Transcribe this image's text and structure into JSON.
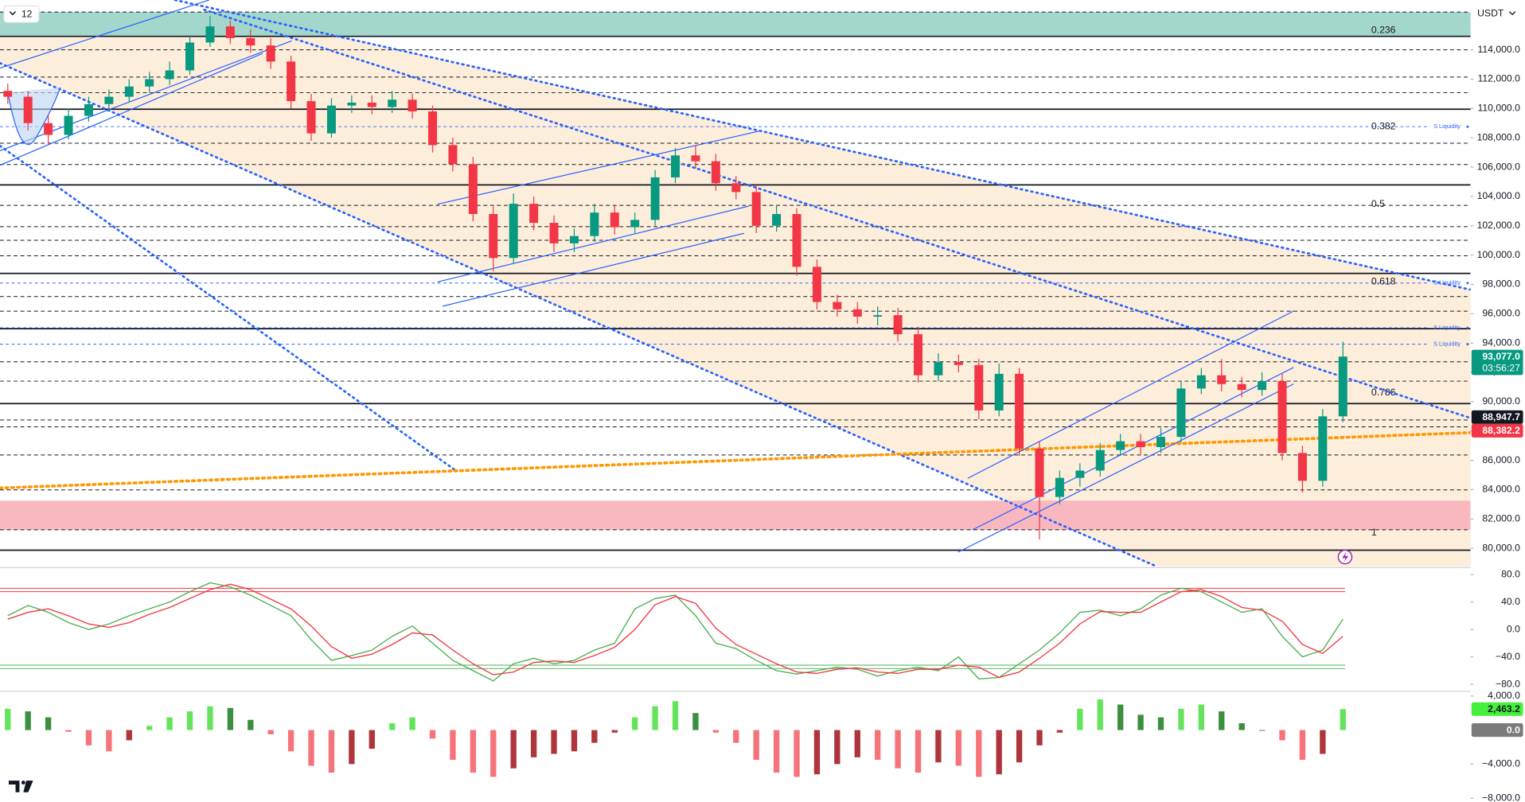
{
  "toolbar": {
    "interval": "12"
  },
  "currency": "USDT",
  "chart_data": [
    {
      "type": "candlestick",
      "up_color": "#089981",
      "down_color": "#f23645",
      "open": [
        111200,
        110800,
        109000,
        108200,
        109500,
        110300,
        110800,
        111500,
        112000,
        112600,
        114500,
        115600,
        114800,
        114300,
        113200,
        110500,
        108300,
        110200,
        110400,
        110100,
        110600,
        109800,
        107500,
        106200,
        102800,
        99800,
        103500,
        102200,
        100800,
        101300,
        102900,
        101900,
        102400,
        105300,
        106800,
        106400,
        104900,
        104300,
        102000,
        102800,
        99200,
        96800,
        96300,
        95800,
        95900,
        94600,
        91800,
        92700,
        92500,
        89400,
        91900,
        86800,
        83500,
        84800,
        85300,
        86700,
        87300,
        86900,
        87600,
        90900,
        91800,
        91200,
        90800,
        91400,
        86500,
        84600,
        89000
      ],
      "high": [
        111700,
        111200,
        109600,
        110000,
        110800,
        111300,
        112000,
        112500,
        113200,
        115000,
        116300,
        116000,
        115400,
        114800,
        113600,
        111000,
        110700,
        110900,
        110900,
        111200,
        111000,
        110200,
        108000,
        106700,
        103300,
        104200,
        104000,
        102700,
        101800,
        103500,
        103400,
        102900,
        105800,
        107300,
        107500,
        106900,
        105400,
        104800,
        103400,
        103200,
        99700,
        97300,
        96800,
        96500,
        96400,
        95100,
        93300,
        93200,
        92900,
        92600,
        92300,
        87300,
        85300,
        85800,
        87200,
        87800,
        87800,
        88200,
        91400,
        92300,
        92900,
        91700,
        92000,
        91900,
        87000,
        89500,
        94100
      ],
      "low": [
        110300,
        108500,
        107600,
        107900,
        109100,
        109900,
        110400,
        111100,
        111600,
        112300,
        114200,
        114400,
        113800,
        112700,
        110000,
        107800,
        108000,
        109700,
        109600,
        109700,
        109300,
        107000,
        105700,
        102300,
        98900,
        99400,
        101700,
        100200,
        100200,
        100900,
        101400,
        101500,
        102000,
        104900,
        105900,
        104400,
        103800,
        101500,
        101600,
        98600,
        96300,
        95800,
        95300,
        95200,
        94100,
        91300,
        91400,
        92000,
        88800,
        89000,
        86300,
        80600,
        83000,
        84200,
        84900,
        86300,
        86400,
        86500,
        87200,
        90500,
        90700,
        90300,
        90400,
        86000,
        83800,
        84200,
        88600
      ],
      "close": [
        110800,
        109000,
        108200,
        109500,
        110300,
        110800,
        111500,
        112000,
        112600,
        114500,
        115600,
        114800,
        114300,
        113200,
        110500,
        108300,
        110200,
        110400,
        110100,
        110600,
        109800,
        107500,
        106200,
        102800,
        99800,
        103500,
        102200,
        100800,
        101300,
        102900,
        101900,
        102400,
        105300,
        106800,
        106400,
        104900,
        104300,
        102000,
        102800,
        99200,
        96800,
        96300,
        95800,
        95900,
        94600,
        91800,
        92700,
        92500,
        89400,
        91900,
        86800,
        83500,
        84800,
        85300,
        86700,
        87300,
        86900,
        87600,
        90900,
        91800,
        91200,
        90800,
        91400,
        86500,
        84600,
        89000,
        93077
      ],
      "ylim": [
        78740,
        117400
      ],
      "yticks": [
        {
          "value": 80000,
          "label": "80,000.0"
        },
        {
          "value": 82000,
          "label": "82,000.0"
        },
        {
          "value": 84000,
          "label": "84,000.0"
        },
        {
          "value": 86000,
          "label": "86,000.0"
        },
        {
          "value": 88000,
          "label": "88,000.0"
        },
        {
          "value": 90000,
          "label": "90,000.0"
        },
        {
          "value": 92000,
          "label": "92,000.0"
        },
        {
          "value": 94000,
          "label": "94,000.0"
        },
        {
          "value": 96000,
          "label": "96,000.0"
        },
        {
          "value": 98000,
          "label": "98,000.0"
        },
        {
          "value": 100000,
          "label": "100,000.0"
        },
        {
          "value": 102000,
          "label": "102,000.0"
        },
        {
          "value": 104000,
          "label": "104,000.0"
        },
        {
          "value": 106000,
          "label": "106,000.0"
        },
        {
          "value": 108000,
          "label": "108,000.0"
        },
        {
          "value": 110000,
          "label": "110,000.0"
        },
        {
          "value": 112000,
          "label": "112,000.0"
        },
        {
          "value": 114000,
          "label": "114,000.0"
        }
      ],
      "zones": [
        {
          "from": 114920,
          "to": 116580,
          "color": "#a3d7cc"
        },
        {
          "from": 81260,
          "to": 83250,
          "color": "#f9b8c0"
        }
      ],
      "levels": [
        {
          "value": 114920,
          "style": "solid"
        },
        {
          "value": 109950,
          "style": "solid"
        },
        {
          "value": 104790,
          "style": "solid"
        },
        {
          "value": 98750,
          "style": "solid"
        },
        {
          "value": 94980,
          "style": "solid"
        },
        {
          "value": 89870,
          "style": "solid"
        },
        {
          "value": 79870,
          "style": "solid"
        },
        {
          "value": 116580,
          "style": "dashed"
        },
        {
          "value": 114000,
          "style": "dashed"
        },
        {
          "value": 112140,
          "style": "dashed"
        },
        {
          "value": 111080,
          "style": "dashed"
        },
        {
          "value": 107630,
          "style": "dashed"
        },
        {
          "value": 106180,
          "style": "dashed"
        },
        {
          "value": 103390,
          "style": "dashed"
        },
        {
          "value": 101940,
          "style": "dashed"
        },
        {
          "value": 101010,
          "style": "dashed"
        },
        {
          "value": 99950,
          "style": "dashed"
        },
        {
          "value": 97170,
          "style": "dashed"
        },
        {
          "value": 96170,
          "style": "dashed"
        },
        {
          "value": 92720,
          "style": "dashed"
        },
        {
          "value": 91400,
          "style": "dashed"
        },
        {
          "value": 88750,
          "style": "dashed"
        },
        {
          "value": 88280,
          "style": "dashed"
        },
        {
          "value": 86360,
          "style": "dashed"
        },
        {
          "value": 83980,
          "style": "dashed"
        },
        {
          "value": 81260,
          "style": "dashed"
        }
      ],
      "liquidity_color": "#2962ff",
      "liquidity": [
        {
          "value": 108760,
          "label": "S Liquidity"
        },
        {
          "value": 98090,
          "label": "S Liquidity"
        },
        {
          "value": 95040,
          "label": "S Liquidity"
        },
        {
          "value": 93920,
          "label": "S Liquidity"
        }
      ],
      "fib_labels": [
        {
          "value": 115320,
          "label": "0.236"
        },
        {
          "value": 108760,
          "label": "0.382"
        },
        {
          "value": 103460,
          "label": "0.5"
        },
        {
          "value": 98160,
          "label": "0.618"
        },
        {
          "value": 90600,
          "label": "0.786"
        },
        {
          "value": 81060,
          "label": "1"
        }
      ],
      "price_labels": [
        {
          "value": 93077,
          "label": "93,077.0",
          "countdown": "03:56:27",
          "color": "#089981",
          "text_color": "#ffffff"
        },
        {
          "value": 88947.7,
          "label": "88,947.7",
          "color": "#131722",
          "text_color": "#ffffff"
        },
        {
          "value": 88382.2,
          "label": "88,382.2",
          "color": "#f23645",
          "text_color": "#ffffff"
        }
      ]
    },
    {
      "type": "line",
      "series": [
        {
          "color": "#4caf50",
          "values": [
            20,
            35,
            25,
            10,
            0,
            8,
            20,
            30,
            40,
            55,
            68,
            62,
            50,
            35,
            20,
            -15,
            -45,
            -38,
            -30,
            -10,
            5,
            -20,
            -45,
            -60,
            -75,
            -50,
            -42,
            -50,
            -45,
            -30,
            -20,
            30,
            45,
            50,
            20,
            -20,
            -28,
            -45,
            -60,
            -65,
            -60,
            -55,
            -58,
            -68,
            -60,
            -55,
            -60,
            -40,
            -72,
            -70,
            -50,
            -30,
            -5,
            25,
            28,
            20,
            30,
            50,
            60,
            55,
            40,
            25,
            30,
            -10,
            -40,
            -30,
            15
          ]
        },
        {
          "color": "#f23645",
          "values": [
            15,
            25,
            30,
            20,
            8,
            3,
            10,
            22,
            32,
            45,
            58,
            66,
            58,
            44,
            30,
            5,
            -25,
            -42,
            -36,
            -22,
            -5,
            -8,
            -30,
            -50,
            -66,
            -62,
            -48,
            -46,
            -48,
            -38,
            -26,
            0,
            36,
            48,
            38,
            2,
            -22,
            -36,
            -50,
            -62,
            -64,
            -58,
            -56,
            -62,
            -64,
            -58,
            -58,
            -52,
            -55,
            -70,
            -62,
            -42,
            -20,
            8,
            26,
            25,
            25,
            40,
            55,
            58,
            48,
            32,
            28,
            12,
            -22,
            -35,
            -10
          ]
        }
      ],
      "bands": [
        {
          "value": 60,
          "color": "#f23645"
        },
        {
          "value": 55,
          "color": "#f23645"
        },
        {
          "value": -52,
          "color": "#4caf50"
        },
        {
          "value": -57,
          "color": "#4caf50"
        }
      ],
      "ylim": [
        -88.5,
        88.5
      ],
      "yticks": [
        {
          "value": 80,
          "label": "80.0"
        },
        {
          "value": 40,
          "label": "40.0"
        },
        {
          "value": 0,
          "label": "0.0"
        },
        {
          "value": -40,
          "label": "−40.0"
        },
        {
          "value": -80,
          "label": "−80.0"
        }
      ]
    },
    {
      "type": "bar",
      "values": [
        2500,
        2200,
        1500,
        -200,
        -1800,
        -2500,
        -1200,
        500,
        1500,
        2200,
        2800,
        2600,
        1200,
        -500,
        -2500,
        -4200,
        -5000,
        -4000,
        -2200,
        800,
        1500,
        -1000,
        -3500,
        -5000,
        -5500,
        -4500,
        -3200,
        -2800,
        -2500,
        -1500,
        -300,
        1500,
        2800,
        3400,
        2000,
        -300,
        -1500,
        -3500,
        -5000,
        -5500,
        -5200,
        -4000,
        -3200,
        -3500,
        -4500,
        -5000,
        -3800,
        -4200,
        -5500,
        -5200,
        -3800,
        -1800,
        -300,
        2500,
        3600,
        3000,
        1800,
        1500,
        2500,
        3000,
        2200,
        800,
        0,
        -1200,
        -3500,
        -2800,
        2463.2
      ],
      "positive_colors": [
        "#66e35c",
        "#3d8f40"
      ],
      "negative_colors": [
        "#f7737a",
        "#b0343c"
      ],
      "ylim": [
        -8457,
        4457
      ],
      "yticks": [
        {
          "value": 4000,
          "label": "4,000.0"
        },
        {
          "value": -4000,
          "label": "−4,000.0"
        },
        {
          "value": -8000,
          "label": "−8,000.0"
        }
      ],
      "price_labels": [
        {
          "value": 2463.2,
          "label": "2,463.2",
          "color": "#44f03c",
          "text_color": "#131722"
        },
        {
          "value": 0,
          "label": "0.0",
          "color": "#7b7b7b",
          "text_color": "#ffffff"
        }
      ]
    }
  ]
}
